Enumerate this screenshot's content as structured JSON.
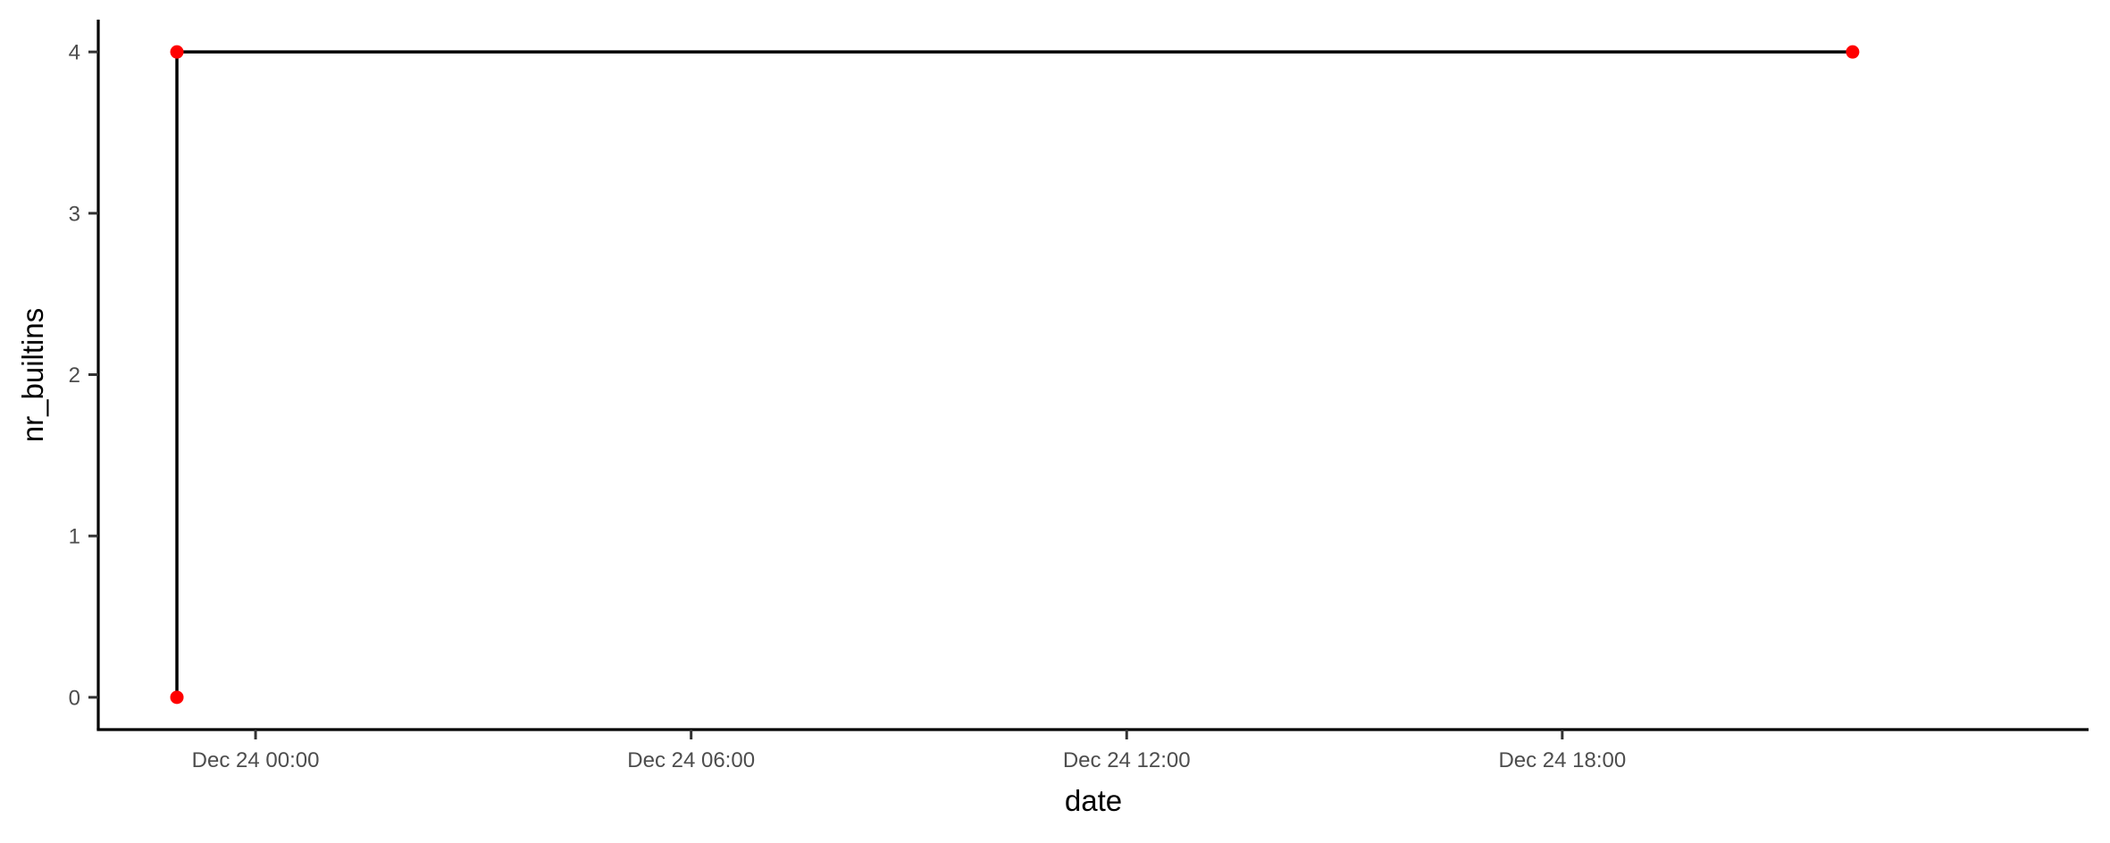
{
  "chart_data": {
    "type": "line",
    "title": "",
    "xlabel": "date",
    "ylabel": "nr_builtins",
    "x_tick_labels": [
      "Dec 24 00:00",
      "Dec 24 06:00",
      "Dec 24 12:00",
      "Dec 24 18:00"
    ],
    "x_tick_values": [
      "2023-12-24 00:00",
      "2023-12-24 06:00",
      "2023-12-24 12:00",
      "2023-12-24 18:00"
    ],
    "y_tick_labels": [
      "0",
      "1",
      "2",
      "3",
      "4"
    ],
    "y_tick_values": [
      0,
      1,
      2,
      3,
      4
    ],
    "xlim": [
      "2023-12-23 21:50",
      "2023-12-25 01:15"
    ],
    "ylim": [
      -0.2,
      4.2
    ],
    "series": [
      {
        "x": [
          "2023-12-23 22:55",
          "2023-12-23 22:55",
          "2023-12-24 22:00"
        ],
        "y": [
          0,
          4,
          4
        ]
      }
    ],
    "grid": false,
    "line_color": "#000000",
    "point_color": "#ff0000"
  }
}
